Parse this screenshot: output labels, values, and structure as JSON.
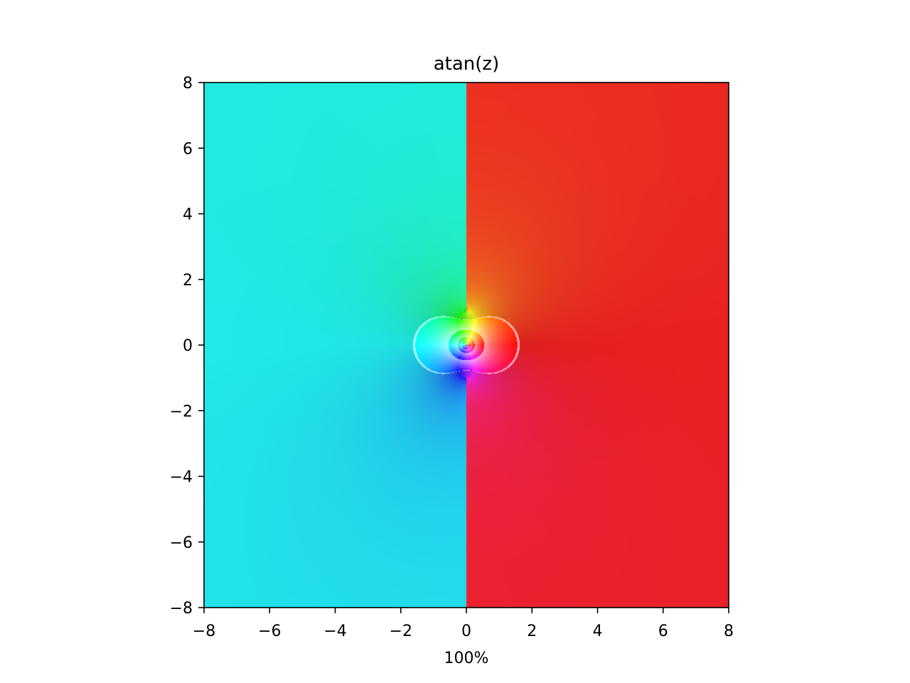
{
  "chart_data": {
    "type": "heatmap",
    "title": "atan(z)",
    "function": "atan(z)",
    "xlabel": "100%",
    "ylabel": "",
    "xlim": [
      -8,
      8
    ],
    "ylim": [
      -8,
      8
    ],
    "xticks": [
      -8,
      -6,
      -4,
      -2,
      0,
      2,
      4,
      6,
      8
    ],
    "yticks": [
      -8,
      -6,
      -4,
      -2,
      0,
      2,
      4,
      6,
      8
    ],
    "xtick_labels": [
      "−8",
      "−6",
      "−4",
      "−2",
      "0",
      "2",
      "4",
      "6",
      "8"
    ],
    "ytick_labels": [
      "−8",
      "−6",
      "−4",
      "−2",
      "0",
      "2",
      "4",
      "6",
      "8"
    ],
    "coloring": "domain-coloring: hue = arg(f(z)), brightness bands = |f(z)|",
    "grid": false,
    "colors": {
      "left_half": "#18e8ee",
      "right_half": "#f02222",
      "axes": "#000000"
    }
  }
}
